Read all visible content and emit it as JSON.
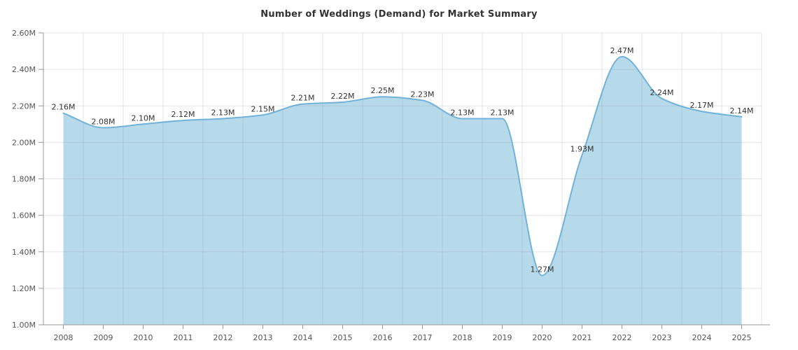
{
  "chart_data": {
    "type": "area",
    "title": "Number of Weddings (Demand) for Market Summary",
    "categories": [
      "2008",
      "2009",
      "2010",
      "2011",
      "2012",
      "2013",
      "2014",
      "2015",
      "2016",
      "2017",
      "2018",
      "2019",
      "2020",
      "2021",
      "2022",
      "2023",
      "2024",
      "2025"
    ],
    "series": [
      {
        "name": "Number of Weddings (Demand)",
        "values": [
          2.16,
          2.08,
          2.1,
          2.12,
          2.13,
          2.15,
          2.21,
          2.22,
          2.25,
          2.23,
          2.13,
          2.13,
          1.27,
          1.93,
          2.47,
          2.24,
          2.17,
          2.14
        ],
        "data_labels": [
          "2.16M",
          "2.08M",
          "2.10M",
          "2.12M",
          "2.13M",
          "2.15M",
          "2.21M",
          "2.22M",
          "2.25M",
          "2.23M",
          "2.13M",
          "2.13M",
          "1.27M",
          "1.93M",
          "2.47M",
          "2.24M",
          "2.17M",
          "2.14M"
        ]
      }
    ],
    "unit": "M",
    "xlabel": "",
    "ylabel": "",
    "ylim": [
      1.0,
      2.6
    ],
    "ytick_step": 0.2,
    "ytick_labels": [
      "2.60M",
      "2.40M",
      "2.20M",
      "2.00M",
      "1.80M",
      "1.60M",
      "1.40M",
      "1.20M",
      "1.00M"
    ],
    "grid": true,
    "legend": false,
    "curve": "smooth-monotone",
    "colors": {
      "area_fill": "#b7daeb",
      "series_line": "#72b2d8",
      "gridline": "#e6e6e6",
      "axis_line": "#999999",
      "axis_label_text": "#555555",
      "data_label_text": "#333333",
      "title_text": "#333333",
      "background": "#ffffff"
    }
  }
}
